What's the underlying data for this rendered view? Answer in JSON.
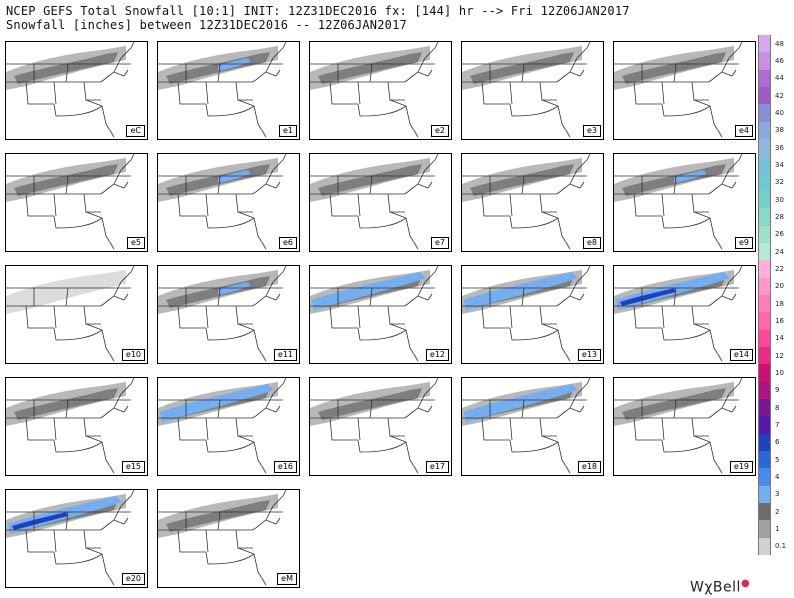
{
  "header": {
    "line1": "NCEP GEFS Total Snowfall [10:1] INIT: 12Z31DEC2016 fx: [144] hr --> Fri 12Z06JAN2017",
    "line2": "Snowfall [inches] between 12Z31DEC2016 -- 12Z06JAN2017"
  },
  "panels": [
    {
      "label": "eC",
      "level": 1
    },
    {
      "label": "e1",
      "level": 2
    },
    {
      "label": "e2",
      "level": 1
    },
    {
      "label": "e3",
      "level": 1
    },
    {
      "label": "e4",
      "level": 1
    },
    {
      "label": "e5",
      "level": 1
    },
    {
      "label": "e6",
      "level": 2
    },
    {
      "label": "e7",
      "level": 1
    },
    {
      "label": "e8",
      "level": 1
    },
    {
      "label": "e9",
      "level": 2
    },
    {
      "label": "e10",
      "level": 0
    },
    {
      "label": "e11",
      "level": 2
    },
    {
      "label": "e12",
      "level": 3
    },
    {
      "label": "e13",
      "level": 3
    },
    {
      "label": "e14",
      "level": 4
    },
    {
      "label": "e15",
      "level": 1
    },
    {
      "label": "e16",
      "level": 3
    },
    {
      "label": "e17",
      "level": 1
    },
    {
      "label": "e18",
      "level": 3
    },
    {
      "label": "e19",
      "level": 1
    },
    {
      "label": "e20",
      "level": 4
    },
    {
      "label": "eM",
      "level": 1
    }
  ],
  "legend": {
    "labels": [
      "48",
      "46",
      "44",
      "42",
      "40",
      "38",
      "36",
      "34",
      "32",
      "30",
      "28",
      "26",
      "24",
      "22",
      "20",
      "18",
      "16",
      "14",
      "12",
      "10",
      "9",
      "8",
      "7",
      "6",
      "5",
      "4",
      "3",
      "2",
      "1",
      "0.1"
    ],
    "colors": [
      "#d6a9ea",
      "#c98fe2",
      "#b06ad0",
      "#9c5bc6",
      "#8a90d8",
      "#8aa8da",
      "#8eb9d8",
      "#7ac0d8",
      "#72c8d0",
      "#78d0c8",
      "#8ad8c8",
      "#9ee0c8",
      "#b4ead4",
      "#ffb0d8",
      "#ff98c8",
      "#ff80b8",
      "#ff68a8",
      "#ff4898",
      "#ee2a86",
      "#d01070",
      "#b0127e",
      "#7c1692",
      "#5a18a8",
      "#2040c0",
      "#2a68d8",
      "#4a8ae8",
      "#74aef0",
      "#6e6e6e",
      "#a0a0a0",
      "#d0d0d0"
    ]
  },
  "brand": "WχBell"
}
